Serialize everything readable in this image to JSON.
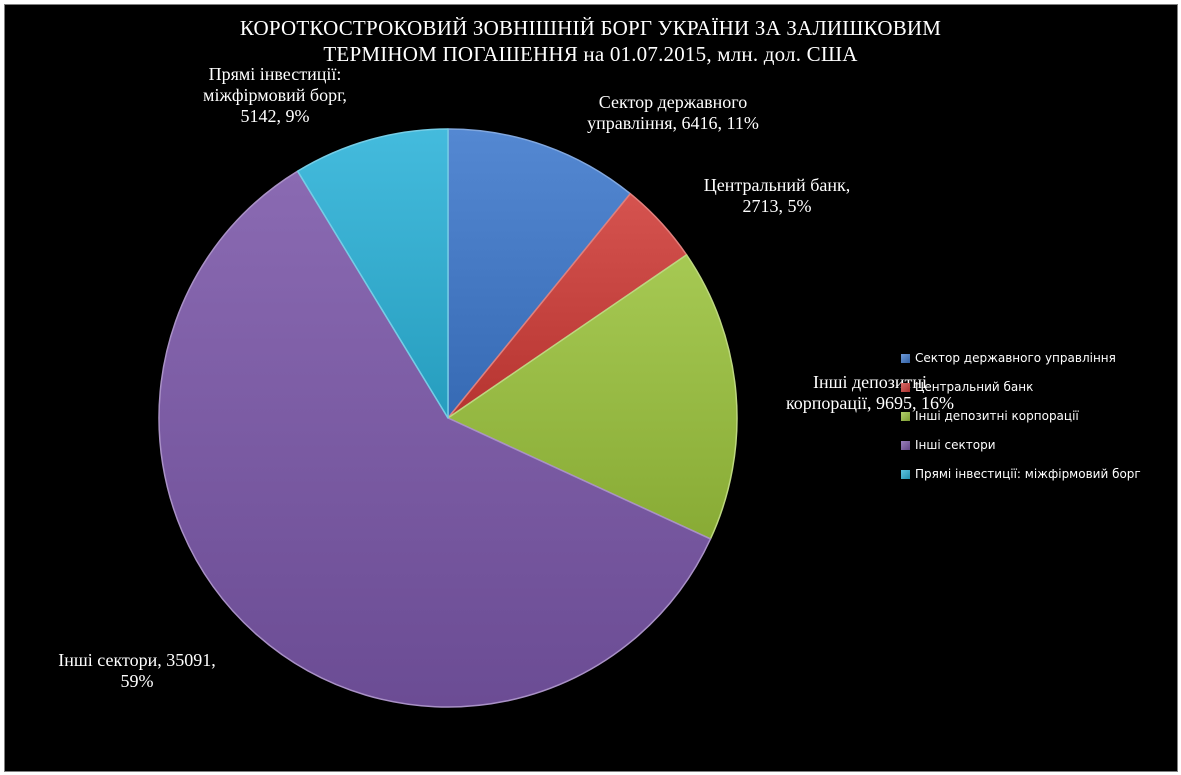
{
  "chart_data": {
    "type": "pie",
    "title": "КОРОТКОСТРОКОВИЙ ЗОВНІШНІЙ БОРГ УКРАЇНИ ЗА ЗАЛИШКОВИМ ТЕРМІНОМ ПОГАШЕННЯ на 01.07.2015, млн. дол. США",
    "title_lines": [
      "КОРОТКОСТРОКОВИЙ ЗОВНІШНІЙ БОРГ УКРАЇНИ ЗА ЗАЛИШКОВИМ",
      "ТЕРМІНОМ ПОГАШЕННЯ на 01.07.2015, млн. дол. США"
    ],
    "legend_position": "right",
    "slices": [
      {
        "name": "Сектор державного управління",
        "value": 6416,
        "percent": "11%",
        "color": "#3d78cc",
        "label_lines": [
          "Сектор державного",
          "управління, 6416, 11%"
        ]
      },
      {
        "name": "Центральний банк",
        "value": 2713,
        "percent": "5%",
        "color": "#cf3b37",
        "label_lines": [
          "Центральний банк,",
          "2713, 5%"
        ]
      },
      {
        "name": "Інші депозитні корпорації",
        "value": 9695,
        "percent": "16%",
        "color": "#9ac23c",
        "label_lines": [
          "Інші депозитні",
          "корпорації, 9695, 16%"
        ]
      },
      {
        "name": "Інші сектори",
        "value": 35091,
        "percent": "59%",
        "color": "#7a56a8",
        "label_lines": [
          "Інші сектори, 35091,",
          "59%"
        ]
      },
      {
        "name": "Прямі інвестиції: міжфірмовий борг",
        "value": 5142,
        "percent": "9%",
        "color": "#2bb2d8",
        "label_lines": [
          "Прямі інвестиції:",
          "міжфірмовий борг,",
          "5142, 9%"
        ]
      }
    ]
  }
}
